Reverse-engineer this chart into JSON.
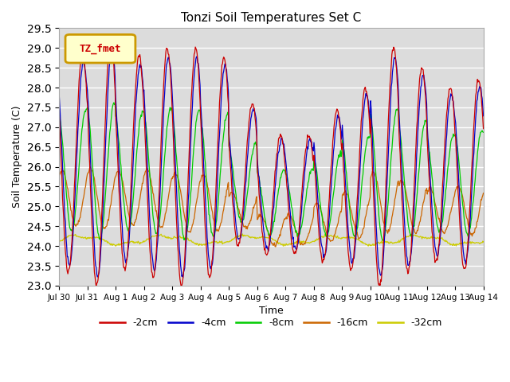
{
  "title": "Tonzi Soil Temperatures Set C",
  "xlabel": "Time",
  "ylabel": "Soil Temperature (C)",
  "ylim": [
    23.0,
    29.5
  ],
  "yticks": [
    23.0,
    23.5,
    24.0,
    24.5,
    25.0,
    25.5,
    26.0,
    26.5,
    27.0,
    27.5,
    28.0,
    28.5,
    29.0,
    29.5
  ],
  "xtick_labels": [
    "Jul 30",
    "Jul 31",
    "Aug 1",
    "Aug 2",
    "Aug 3",
    "Aug 4",
    "Aug 5",
    "Aug 6",
    "Aug 7",
    "Aug 8",
    "Aug 9",
    "Aug 10",
    "Aug 11",
    "Aug 12",
    "Aug 13",
    "Aug 14"
  ],
  "colors": {
    "-2cm": "#cc0000",
    "-4cm": "#0000cc",
    "-8cm": "#00cc00",
    "-16cm": "#cc6600",
    "-32cm": "#cccc00"
  },
  "legend_label": "TZ_fmet",
  "legend_bg": "#ffffcc",
  "legend_edge": "#cc9900",
  "legend_text_color": "#cc0000",
  "bg_color": "#dcdcdc",
  "fig_color": "#ffffff",
  "n_days": 15,
  "pts_per_day": 48
}
